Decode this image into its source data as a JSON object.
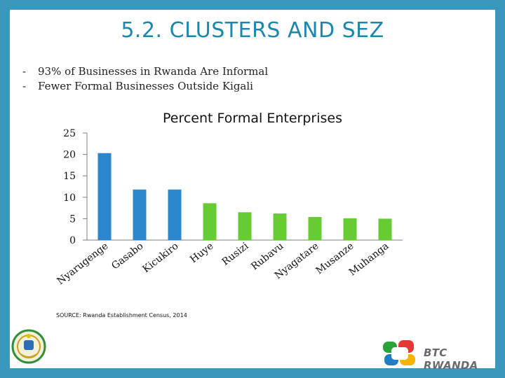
{
  "slide": {
    "title": "5.2. CLUSTERS AND SEZ",
    "bullets": [
      {
        "dash": "-",
        "text": "93% of Businesses in Rwanda Are Informal"
      },
      {
        "dash": "-",
        "text": "Fewer Formal Businesses Outside Kigali"
      }
    ],
    "source": "SOURCE:  Rwanda Establishment Census, 2014",
    "logo_text": "BTC RWANDA"
  },
  "chart_data": {
    "type": "bar",
    "title": "Percent Formal Enterprises",
    "categories": [
      "Nyarugenge",
      "Gasabo",
      "Kicukiro",
      "Huye",
      "Rusizi",
      "Rubavu",
      "Nyagatare",
      "Musanze",
      "Muhanga"
    ],
    "values": [
      20.3,
      11.8,
      11.8,
      8.6,
      6.5,
      6.2,
      5.4,
      5.1,
      5.0
    ],
    "ylim": [
      0,
      25
    ],
    "yticks": [
      0,
      5,
      10,
      15,
      20,
      25
    ],
    "xlabel": "",
    "ylabel": "",
    "grid": false,
    "colors": [
      "#2b86cc",
      "#2b86cc",
      "#2b86cc",
      "#66cc33",
      "#66cc33",
      "#66cc33",
      "#66cc33",
      "#66cc33",
      "#66cc33"
    ]
  }
}
